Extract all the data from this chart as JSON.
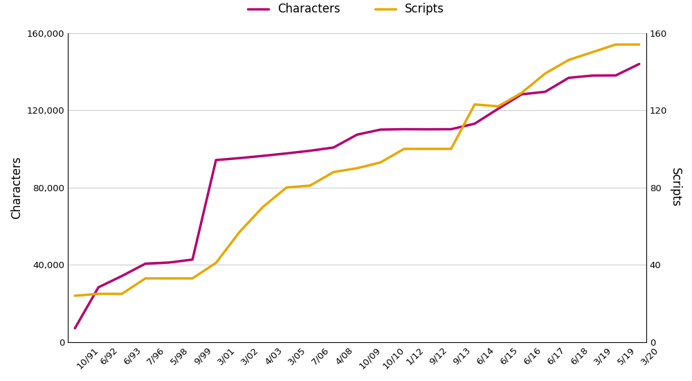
{
  "x_labels": [
    "10/91",
    "6/92",
    "6/93",
    "7/96",
    "5/98",
    "9/99",
    "3/01",
    "3/02",
    "4/03",
    "3/05",
    "7/06",
    "4/08",
    "10/09",
    "10/10",
    "1/12",
    "9/12",
    "9/13",
    "6/14",
    "6/15",
    "6/16",
    "6/17",
    "6/18",
    "3/19",
    "5/19",
    "3/20"
  ],
  "characters": [
    7161,
    28359,
    34233,
    40621,
    41182,
    42711,
    94205,
    95221,
    96382,
    97655,
    99024,
    100713,
    107361,
    109975,
    110182,
    110116,
    110181,
    113021,
    120737,
    128237,
    129535,
    136755,
    137929,
    137994,
    143924
  ],
  "scripts": [
    24,
    25,
    25,
    33,
    33,
    33,
    41,
    57,
    70,
    80,
    81,
    88,
    90,
    93,
    100,
    100,
    100,
    123,
    122,
    129,
    139,
    146,
    150,
    154,
    154
  ],
  "char_color": "#b5006e",
  "script_color": "#e6a800",
  "char_linewidth": 2.5,
  "script_linewidth": 2.5,
  "ylim_left": [
    0,
    160000
  ],
  "ylim_right": [
    0,
    160
  ],
  "yticks_left": [
    0,
    40000,
    80000,
    120000,
    160000
  ],
  "yticks_right": [
    0,
    40,
    80,
    120,
    160
  ],
  "ylabel_left": "Characters",
  "ylabel_right": "Scripts",
  "legend_chars": "Characters",
  "legend_scripts": "Scripts",
  "bg_color": "#ffffff",
  "grid_color": "#cccccc",
  "title": "",
  "tick_fontsize": 9.5,
  "label_fontsize": 12
}
